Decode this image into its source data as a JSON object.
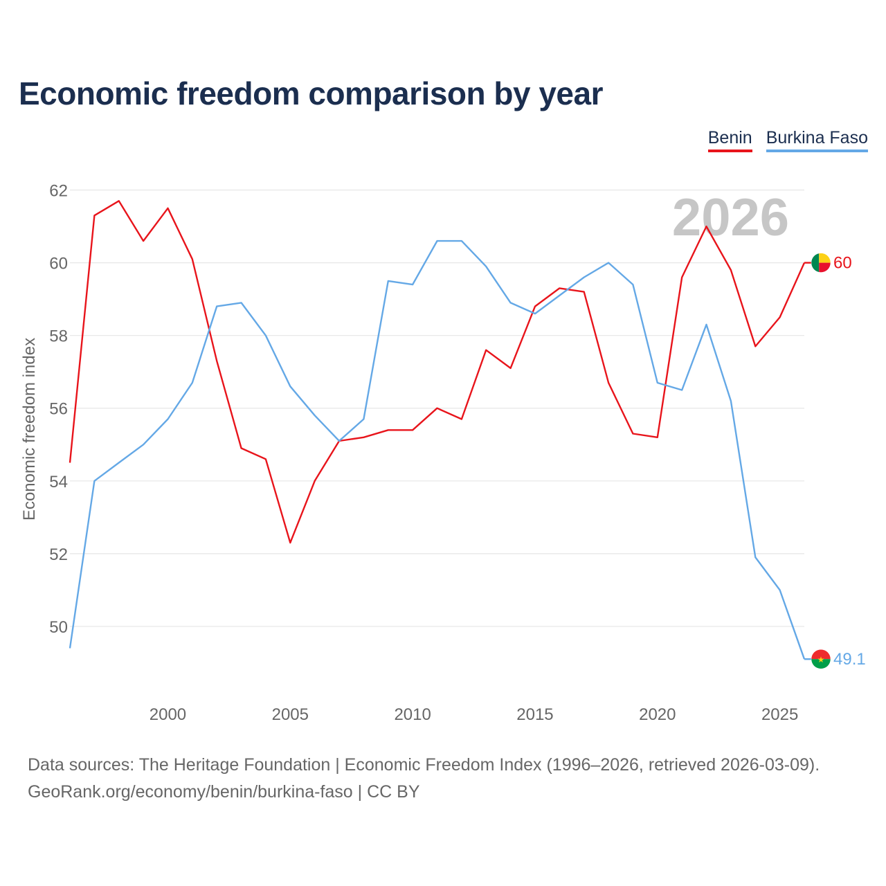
{
  "title": "Economic freedom comparison by year",
  "legend": [
    {
      "label": "Benin",
      "color": "#e8141b"
    },
    {
      "label": "Burkina Faso",
      "color": "#64a8e6"
    }
  ],
  "footer": {
    "line1": "Data sources: The Heritage Foundation | Economic Freedom Index (1996–2026, retrieved 2026-03-09).",
    "line2": "GeoRank.org/economy/benin/burkina-faso | CC BY"
  },
  "chart_data": {
    "type": "line",
    "title": "Economic freedom comparison by year",
    "xlabel": "",
    "ylabel": "Economic freedom index",
    "year_watermark": "2026",
    "x": [
      1996,
      1997,
      1998,
      1999,
      2000,
      2001,
      2002,
      2003,
      2004,
      2005,
      2006,
      2007,
      2008,
      2009,
      2010,
      2011,
      2012,
      2013,
      2014,
      2015,
      2016,
      2017,
      2018,
      2019,
      2020,
      2021,
      2022,
      2023,
      2024,
      2025,
      2026
    ],
    "xlim": [
      1996,
      2026
    ],
    "ylim": [
      48,
      63
    ],
    "xticks": [
      2000,
      2005,
      2010,
      2015,
      2020,
      2025
    ],
    "yticks": [
      50,
      52,
      54,
      56,
      58,
      60,
      62
    ],
    "grid": true,
    "legend_position": "top-right",
    "series": [
      {
        "name": "Benin",
        "color": "#e8141b",
        "end_label": "60",
        "values": [
          54.5,
          61.3,
          61.7,
          60.6,
          61.5,
          60.1,
          57.3,
          54.9,
          54.6,
          52.3,
          54.0,
          55.1,
          55.2,
          55.4,
          55.4,
          56.0,
          55.7,
          57.6,
          57.1,
          58.8,
          59.3,
          59.2,
          56.7,
          55.3,
          55.2,
          59.6,
          61.0,
          59.8,
          57.7,
          58.5,
          60.0
        ]
      },
      {
        "name": "Burkina Faso",
        "color": "#64a8e6",
        "end_label": "49.1",
        "values": [
          49.4,
          54.0,
          54.5,
          55.0,
          55.7,
          56.7,
          58.8,
          58.9,
          58.0,
          56.6,
          55.8,
          55.1,
          55.7,
          59.5,
          59.4,
          60.6,
          60.6,
          59.9,
          58.9,
          58.6,
          59.1,
          59.6,
          60.0,
          59.4,
          56.7,
          56.5,
          58.3,
          56.2,
          51.9,
          51.0,
          49.1
        ]
      }
    ]
  }
}
